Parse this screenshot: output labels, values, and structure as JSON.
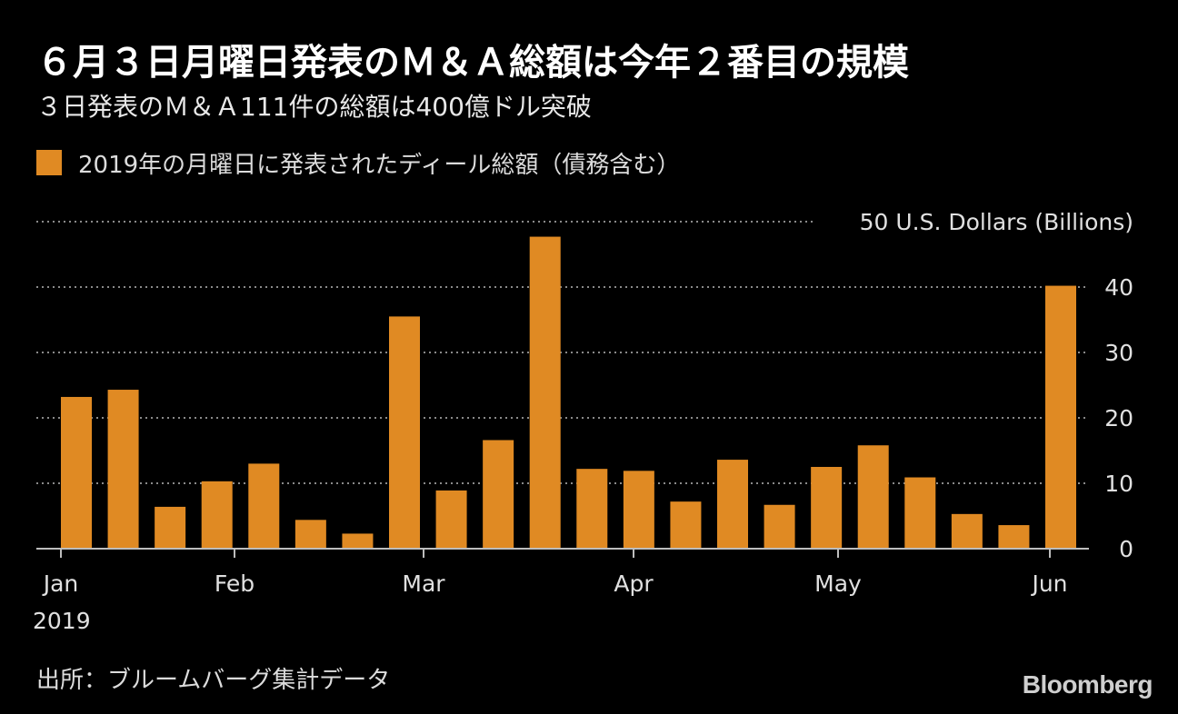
{
  "title": "６月３日月曜日発表のＭ＆Ａ総額は今年２番目の規模",
  "subtitle": "３日発表のＭ＆Ａ111件の総額は400億ドル突破",
  "legend": {
    "label": "2019年の月曜日に発表されたディール総額（債務含む）",
    "color": "#e08a23"
  },
  "source": "出所：ブルームバーグ集計データ",
  "logo": "Bloomberg",
  "chart_data": {
    "type": "bar",
    "title": "６月３日月曜日発表のＭ＆Ａ総額は今年２番目の規模",
    "subtitle": "３日発表のＭ＆Ａ111件の総額は400億ドル突破",
    "ylabel": "50 U.S. Dollars (Billions)",
    "ylim": [
      0,
      50
    ],
    "yticks": [
      "0",
      "10",
      "20",
      "30",
      "40"
    ],
    "xticks": [
      "Jan",
      "Feb",
      "Mar",
      "Apr",
      "May",
      "Jun"
    ],
    "xticks_sub": "2019",
    "grid": true,
    "bar_color": "#e08a23",
    "series": [
      {
        "name": "2019年の月曜日に発表されたディール総額（債務含む）",
        "values": [
          23.2,
          24.3,
          6.4,
          10.3,
          13.0,
          4.4,
          2.3,
          35.5,
          8.9,
          16.6,
          47.7,
          12.2,
          11.9,
          7.2,
          13.6,
          6.7,
          12.5,
          15.8,
          10.9,
          5.3,
          3.6,
          40.2
        ]
      }
    ]
  }
}
